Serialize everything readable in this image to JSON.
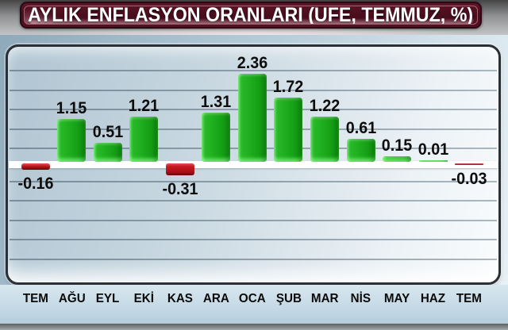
{
  "title": "AYLIK ENFLASYON ORANLARI (ÜFE, TEMMUZ, %)",
  "chart_data": {
    "type": "bar",
    "title": "AYLIK ENFLASYON ORANLARI (ÜFE, TEMMUZ, %)",
    "categories": [
      "TEM",
      "AĞU",
      "EYL",
      "EKİ",
      "KAS",
      "ARA",
      "OCA",
      "ŞUB",
      "MAR",
      "NİS",
      "MAY",
      "HAZ",
      "TEM"
    ],
    "values": [
      -0.16,
      1.15,
      0.51,
      1.21,
      -0.31,
      1.31,
      2.36,
      1.72,
      1.22,
      0.61,
      0.15,
      0.01,
      -0.03
    ],
    "value_labels": [
      "-0.16",
      "1.15",
      "0.51",
      "1.21",
      "-0.31",
      "1.31",
      "2.36",
      "1.72",
      "1.22",
      "0.61",
      "0.15",
      "0.01",
      "-0.03"
    ],
    "xlabel": "",
    "ylabel": "",
    "ylim": [
      -2.75,
      3.4
    ],
    "gridline_interval": 0.5,
    "grid": true,
    "legend_position": "none",
    "colors": {
      "positive_bar": "#1aa81a",
      "negative_bar": "#b31219",
      "baseline": "#ffffff",
      "title_background": "#480d1c",
      "title_text": "#ffffff",
      "panel_background": "#c9d8e1",
      "label_text": "#0d0d0d"
    }
  }
}
